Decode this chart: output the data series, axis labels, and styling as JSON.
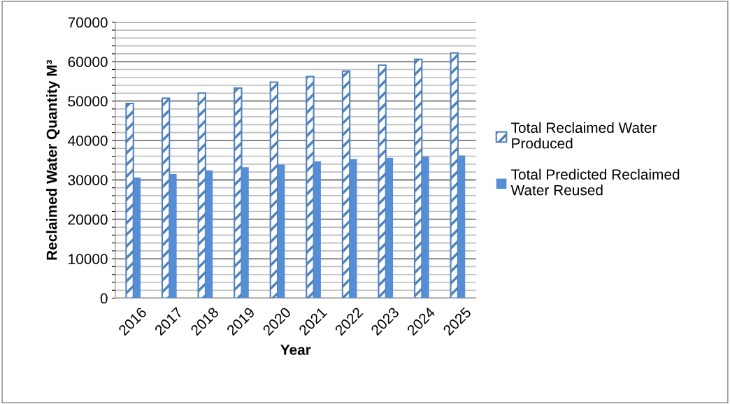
{
  "chart_data": {
    "type": "bar",
    "xlabel": "Year",
    "ylabel": "Reclaimed Water Quantity M³",
    "categories": [
      "2016",
      "2017",
      "2018",
      "2019",
      "2020",
      "2021",
      "2022",
      "2023",
      "2024",
      "2025"
    ],
    "series": [
      {
        "name": "Total Reclaimed Water Produced",
        "color": "#4f81bd",
        "values": [
          49400,
          50700,
          52000,
          53300,
          54800,
          56200,
          57600,
          59100,
          60600,
          62200
        ]
      },
      {
        "name": "Total Predicted Reclaimed Water Reused",
        "color": "#558ed5",
        "values": [
          30600,
          31500,
          32400,
          33200,
          33900,
          34700,
          35300,
          35600,
          35900,
          36200
        ]
      }
    ],
    "ylim": [
      0,
      70000
    ],
    "yticks": [
      0,
      {
        "value": 2000,
        "label": null
      },
      {
        "value": 4000,
        "label": null
      },
      {
        "value": 6000,
        "label": null
      },
      {
        "value": 8000,
        "label": null
      },
      10000,
      {
        "value": 12000,
        "label": null
      },
      {
        "value": 14000,
        "label": null
      },
      {
        "value": 16000,
        "label": null
      },
      {
        "value": 18000,
        "label": null
      },
      20000,
      {
        "value": 22000,
        "label": null
      },
      {
        "value": 24000,
        "label": null
      },
      {
        "value": 26000,
        "label": null
      },
      {
        "value": 28000,
        "label": null
      },
      30000,
      {
        "value": 32000,
        "label": null
      },
      {
        "value": 34000,
        "label": null
      },
      {
        "value": 36000,
        "label": null
      },
      {
        "value": 38000,
        "label": null
      },
      40000,
      {
        "value": 42000,
        "label": null
      },
      {
        "value": 44000,
        "label": null
      },
      {
        "value": 46000,
        "label": null
      },
      {
        "value": 48000,
        "label": null
      },
      50000,
      {
        "value": 52000,
        "label": null
      },
      {
        "value": 54000,
        "label": null
      },
      {
        "value": 56000,
        "label": null
      },
      {
        "value": 58000,
        "label": null
      },
      60000,
      {
        "value": 62000,
        "label": null
      },
      {
        "value": 64000,
        "label": null
      },
      {
        "value": 66000,
        "label": null
      },
      {
        "value": 68000,
        "label": null
      },
      70000
    ],
    "grid": "y",
    "legend": "right"
  }
}
